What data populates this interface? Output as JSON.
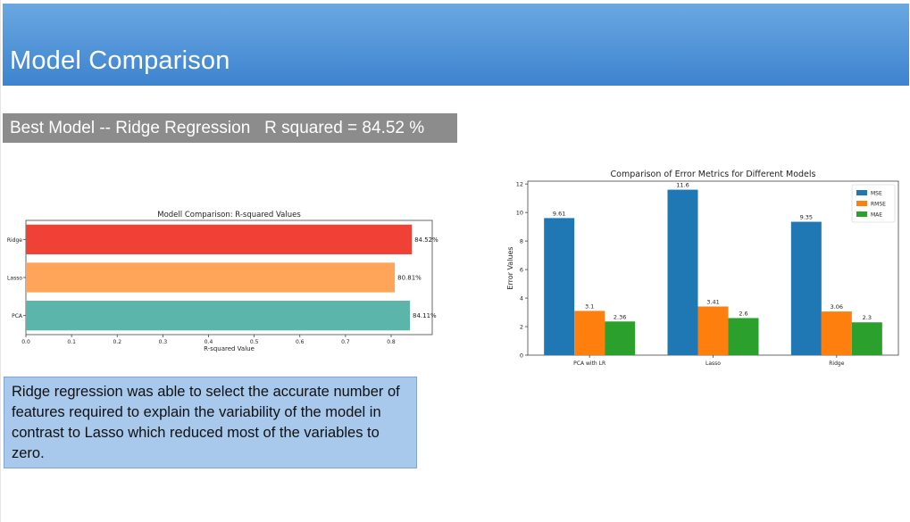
{
  "slide": {
    "title": "Model Comparison",
    "best_model_text": "Best Model -- Ridge Regression   R squared = 84.52 %",
    "note": "Ridge regression was able to select the accurate number of features required to explain the variability of the model in contrast to Lasso which reduced most of the variables to zero.",
    "colors": {
      "header": "#4a90d9",
      "banner": "#8c8c8c",
      "note_box": "#a8c8ec"
    }
  },
  "chart_data": [
    {
      "type": "bar",
      "orientation": "horizontal",
      "title": "Modell Comparison: R-squared Values",
      "xlabel": "R-squared Value",
      "ylabel": "",
      "categories": [
        "Ridge",
        "Lasso",
        "PCA"
      ],
      "values": [
        0.8452,
        0.8081,
        0.8411
      ],
      "data_labels": [
        "84.52%",
        "80.81%",
        "84.11%"
      ],
      "colors": [
        "#ef4136",
        "#ffa55a",
        "#5bb5aa"
      ],
      "xlim": [
        0,
        0.89
      ],
      "xticks": [
        "0.0",
        "0.1",
        "0.2",
        "0.3",
        "0.4",
        "0.5",
        "0.6",
        "0.7",
        "0.8"
      ],
      "grid": false
    },
    {
      "type": "bar",
      "title": "Comparison of Error Metrics for Different Models",
      "xlabel": "",
      "ylabel": "Error Values",
      "categories": [
        "PCA with LR",
        "Lasso",
        "Ridge"
      ],
      "series": [
        {
          "name": "MSE",
          "color": "#1f77b4",
          "values": [
            9.61,
            11.6,
            9.35
          ]
        },
        {
          "name": "RMSE",
          "color": "#ff7f0e",
          "values": [
            3.1,
            3.41,
            3.06
          ]
        },
        {
          "name": "MAE",
          "color": "#2ca02c",
          "values": [
            2.36,
            2.6,
            2.3
          ]
        }
      ],
      "ylim": [
        0,
        12.2
      ],
      "yticks": [
        "0",
        "2",
        "4",
        "6",
        "8",
        "10",
        "12"
      ],
      "legend": "top-right",
      "grid": false
    }
  ]
}
